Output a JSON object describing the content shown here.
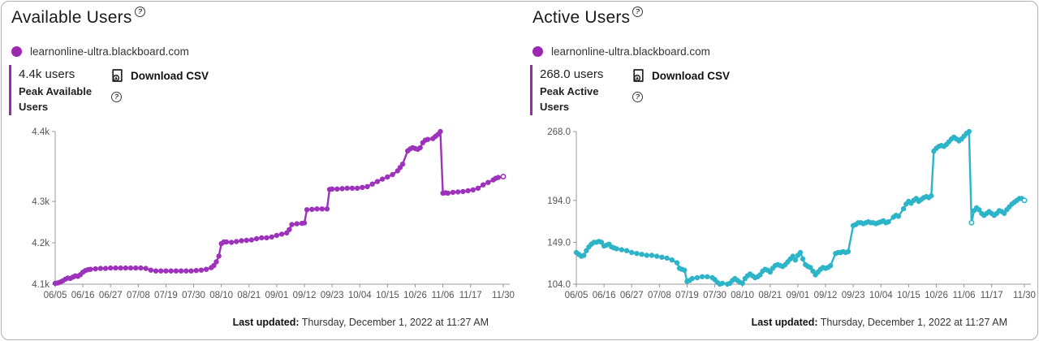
{
  "footer": {
    "label": "Last updated:",
    "value": " Thursday, December 1, 2022 at 11:27 AM"
  },
  "icons": {
    "help": "?",
    "download": "download-file-icon",
    "legend_dot_color": "#9c27b0",
    "accent_bar_color": "#9c27b0"
  },
  "charts": [
    {
      "title": "Available Users",
      "legend_label": "learnonline-ultra.blackboard.com",
      "stat_value": "4.4k users",
      "stat_label_line1": "Peak Available",
      "stat_label_line2": "Users",
      "download_label": "Download CSV",
      "line_color": "#9d32bb",
      "chart_data": {
        "type": "line",
        "title": "Available Users",
        "series_name": "learnonline-ultra.blackboard.com",
        "x_tick_labels": [
          "06/05",
          "06/16",
          "06/27",
          "07/08",
          "07/19",
          "07/30",
          "08/10",
          "08/21",
          "09/01",
          "09/12",
          "09/23",
          "10/04",
          "10/15",
          "10/26",
          "11/06",
          "11/17",
          "11/30"
        ],
        "x_tick_days": [
          0,
          11,
          22,
          33,
          44,
          55,
          66,
          77,
          88,
          99,
          110,
          121,
          132,
          143,
          154,
          165,
          178
        ],
        "y_ticks": [
          {
            "label": "4.4k",
            "value": 4467
          },
          {
            "label": "4.3k",
            "value": 4298
          },
          {
            "label": "4.2k",
            "value": 4198
          },
          {
            "label": "4.1k",
            "value": 4098
          }
        ],
        "y_min": 4098,
        "y_max": 4467,
        "x_min": 0,
        "x_max": 178,
        "grid": false,
        "legend_position": "top-left",
        "hollow_days": [
          178
        ],
        "points": [
          [
            0,
            4100
          ],
          [
            1,
            4101
          ],
          [
            2,
            4103
          ],
          [
            3,
            4106
          ],
          [
            4,
            4110
          ],
          [
            5,
            4113
          ],
          [
            6,
            4112
          ],
          [
            7,
            4115
          ],
          [
            8,
            4118
          ],
          [
            9,
            4117
          ],
          [
            10,
            4121
          ],
          [
            11,
            4127
          ],
          [
            12,
            4131
          ],
          [
            13,
            4133
          ],
          [
            14,
            4134
          ],
          [
            16,
            4135
          ],
          [
            18,
            4136
          ],
          [
            20,
            4136
          ],
          [
            22,
            4137
          ],
          [
            24,
            4137
          ],
          [
            26,
            4137
          ],
          [
            28,
            4137
          ],
          [
            30,
            4137
          ],
          [
            32,
            4137
          ],
          [
            34,
            4137
          ],
          [
            36,
            4136
          ],
          [
            38,
            4132
          ],
          [
            40,
            4130
          ],
          [
            42,
            4130
          ],
          [
            44,
            4130
          ],
          [
            46,
            4130
          ],
          [
            48,
            4130
          ],
          [
            50,
            4130
          ],
          [
            52,
            4130
          ],
          [
            54,
            4130
          ],
          [
            56,
            4131
          ],
          [
            58,
            4132
          ],
          [
            60,
            4134
          ],
          [
            62,
            4138
          ],
          [
            63,
            4143
          ],
          [
            64,
            4152
          ],
          [
            65,
            4166
          ],
          [
            66,
            4196
          ],
          [
            67,
            4200
          ],
          [
            68,
            4200
          ],
          [
            70,
            4199
          ],
          [
            72,
            4201
          ],
          [
            74,
            4203
          ],
          [
            76,
            4204
          ],
          [
            78,
            4205
          ],
          [
            80,
            4208
          ],
          [
            82,
            4210
          ],
          [
            84,
            4210
          ],
          [
            86,
            4212
          ],
          [
            88,
            4216
          ],
          [
            90,
            4219
          ],
          [
            92,
            4222
          ],
          [
            93,
            4230
          ],
          [
            94,
            4242
          ],
          [
            96,
            4244
          ],
          [
            98,
            4245
          ],
          [
            99,
            4246
          ],
          [
            100,
            4278
          ],
          [
            102,
            4279
          ],
          [
            104,
            4280
          ],
          [
            106,
            4280
          ],
          [
            108,
            4280
          ],
          [
            109,
            4327
          ],
          [
            110,
            4328
          ],
          [
            112,
            4328
          ],
          [
            114,
            4329
          ],
          [
            116,
            4330
          ],
          [
            118,
            4330
          ],
          [
            120,
            4330
          ],
          [
            122,
            4332
          ],
          [
            124,
            4334
          ],
          [
            126,
            4340
          ],
          [
            128,
            4346
          ],
          [
            130,
            4352
          ],
          [
            132,
            4357
          ],
          [
            134,
            4363
          ],
          [
            136,
            4372
          ],
          [
            137,
            4380
          ],
          [
            138,
            4388
          ],
          [
            140,
            4420
          ],
          [
            141,
            4425
          ],
          [
            142,
            4428
          ],
          [
            143,
            4426
          ],
          [
            144,
            4424
          ],
          [
            145,
            4428
          ],
          [
            146,
            4440
          ],
          [
            147,
            4446
          ],
          [
            148,
            4448
          ],
          [
            150,
            4450
          ],
          [
            151,
            4455
          ],
          [
            152,
            4460
          ],
          [
            153,
            4467
          ],
          [
            154,
            4318
          ],
          [
            155,
            4319
          ],
          [
            156,
            4318
          ],
          [
            158,
            4320
          ],
          [
            160,
            4321
          ],
          [
            162,
            4322
          ],
          [
            164,
            4324
          ],
          [
            166,
            4326
          ],
          [
            168,
            4330
          ],
          [
            170,
            4338
          ],
          [
            172,
            4344
          ],
          [
            174,
            4350
          ],
          [
            175,
            4354
          ],
          [
            176,
            4356
          ],
          [
            178,
            4358
          ]
        ]
      }
    },
    {
      "title": "Active Users",
      "legend_label": "learnonline-ultra.blackboard.com",
      "stat_value": "268.0 users",
      "stat_label_line1": "Peak Active",
      "stat_label_line2": "Users",
      "download_label": "Download CSV",
      "line_color": "#2db4c8",
      "chart_data": {
        "type": "line",
        "title": "Active Users",
        "series_name": "learnonline-ultra.blackboard.com",
        "x_tick_labels": [
          "06/05",
          "06/16",
          "06/27",
          "07/08",
          "07/19",
          "07/30",
          "08/10",
          "08/21",
          "09/01",
          "09/12",
          "09/23",
          "10/04",
          "10/15",
          "10/26",
          "11/06",
          "11/17",
          "11/30"
        ],
        "x_tick_days": [
          0,
          11,
          22,
          33,
          44,
          55,
          66,
          77,
          88,
          99,
          110,
          121,
          132,
          143,
          154,
          165,
          178
        ],
        "y_ticks": [
          {
            "label": "268.0",
            "value": 268
          },
          {
            "label": "194.0",
            "value": 194
          },
          {
            "label": "149.0",
            "value": 149
          },
          {
            "label": "104.0",
            "value": 104
          }
        ],
        "y_min": 104,
        "y_max": 268,
        "x_min": 0,
        "x_max": 178,
        "grid": false,
        "legend_position": "top-left",
        "hollow_days": [
          157,
          178
        ],
        "points": [
          [
            0,
            138
          ],
          [
            1,
            136
          ],
          [
            2,
            134
          ],
          [
            3,
            135
          ],
          [
            4,
            140
          ],
          [
            5,
            144
          ],
          [
            6,
            147
          ],
          [
            7,
            149
          ],
          [
            8,
            149
          ],
          [
            9,
            150
          ],
          [
            10,
            149
          ],
          [
            11,
            145
          ],
          [
            12,
            146
          ],
          [
            13,
            147
          ],
          [
            14,
            144
          ],
          [
            15,
            143
          ],
          [
            16,
            142
          ],
          [
            18,
            141
          ],
          [
            20,
            140
          ],
          [
            22,
            138
          ],
          [
            24,
            137
          ],
          [
            26,
            136
          ],
          [
            28,
            135
          ],
          [
            30,
            135
          ],
          [
            32,
            134
          ],
          [
            34,
            133
          ],
          [
            36,
            132
          ],
          [
            38,
            130
          ],
          [
            40,
            127
          ],
          [
            41,
            121
          ],
          [
            42,
            120
          ],
          [
            43,
            119
          ],
          [
            44,
            107
          ],
          [
            45,
            108
          ],
          [
            46,
            110
          ],
          [
            48,
            111
          ],
          [
            50,
            112
          ],
          [
            52,
            112
          ],
          [
            54,
            111
          ],
          [
            55,
            109
          ],
          [
            56,
            106
          ],
          [
            57,
            104
          ],
          [
            58,
            105
          ],
          [
            60,
            104
          ],
          [
            61,
            105
          ],
          [
            62,
            108
          ],
          [
            63,
            110
          ],
          [
            64,
            108
          ],
          [
            65,
            106
          ],
          [
            66,
            105
          ],
          [
            67,
            110
          ],
          [
            68,
            113
          ],
          [
            69,
            115
          ],
          [
            70,
            113
          ],
          [
            71,
            111
          ],
          [
            72,
            112
          ],
          [
            73,
            114
          ],
          [
            74,
            118
          ],
          [
            75,
            120
          ],
          [
            76,
            119
          ],
          [
            77,
            117
          ],
          [
            78,
            121
          ],
          [
            79,
            124
          ],
          [
            80,
            125
          ],
          [
            81,
            124
          ],
          [
            82,
            123
          ],
          [
            83,
            125
          ],
          [
            84,
            128
          ],
          [
            85,
            131
          ],
          [
            86,
            134
          ],
          [
            87,
            130
          ],
          [
            88,
            135
          ],
          [
            89,
            138
          ],
          [
            90,
            131
          ],
          [
            91,
            125
          ],
          [
            92,
            123
          ],
          [
            93,
            122
          ],
          [
            94,
            118
          ],
          [
            95,
            114
          ],
          [
            96,
            117
          ],
          [
            97,
            120
          ],
          [
            98,
            122
          ],
          [
            99,
            121
          ],
          [
            100,
            122
          ],
          [
            101,
            124
          ],
          [
            103,
            137
          ],
          [
            104,
            138
          ],
          [
            105,
            138
          ],
          [
            106,
            139
          ],
          [
            107,
            138
          ],
          [
            108,
            139
          ],
          [
            110,
            167
          ],
          [
            111,
            168
          ],
          [
            112,
            170
          ],
          [
            113,
            170
          ],
          [
            114,
            169
          ],
          [
            115,
            170
          ],
          [
            116,
            171
          ],
          [
            117,
            170
          ],
          [
            118,
            170
          ],
          [
            119,
            169
          ],
          [
            120,
            170
          ],
          [
            121,
            171
          ],
          [
            122,
            172
          ],
          [
            123,
            170
          ],
          [
            124,
            171
          ],
          [
            126,
            176
          ],
          [
            127,
            178
          ],
          [
            128,
            177
          ],
          [
            130,
            185
          ],
          [
            131,
            190
          ],
          [
            132,
            193
          ],
          [
            133,
            191
          ],
          [
            134,
            194
          ],
          [
            135,
            196
          ],
          [
            136,
            193
          ],
          [
            137,
            195
          ],
          [
            138,
            197
          ],
          [
            139,
            198
          ],
          [
            140,
            197
          ],
          [
            141,
            199
          ],
          [
            142,
            247
          ],
          [
            143,
            250
          ],
          [
            144,
            252
          ],
          [
            145,
            253
          ],
          [
            146,
            252
          ],
          [
            147,
            254
          ],
          [
            148,
            257
          ],
          [
            149,
            260
          ],
          [
            150,
            262
          ],
          [
            151,
            260
          ],
          [
            152,
            258
          ],
          [
            153,
            260
          ],
          [
            154,
            263
          ],
          [
            155,
            266
          ],
          [
            156,
            268
          ],
          [
            157,
            170
          ],
          [
            158,
            183
          ],
          [
            159,
            186
          ],
          [
            160,
            184
          ],
          [
            161,
            180
          ],
          [
            162,
            178
          ],
          [
            163,
            180
          ],
          [
            164,
            182
          ],
          [
            165,
            180
          ],
          [
            166,
            178
          ],
          [
            167,
            180
          ],
          [
            168,
            183
          ],
          [
            169,
            182
          ],
          [
            170,
            180
          ],
          [
            171,
            184
          ],
          [
            172,
            187
          ],
          [
            173,
            190
          ],
          [
            174,
            192
          ],
          [
            175,
            194
          ],
          [
            176,
            196
          ],
          [
            177,
            196
          ],
          [
            178,
            194
          ]
        ]
      }
    }
  ]
}
